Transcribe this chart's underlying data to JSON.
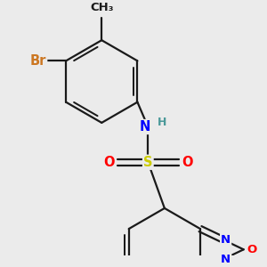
{
  "bg_color": "#ebebeb",
  "bond_color": "#1a1a1a",
  "bond_width": 1.6,
  "atom_colors": {
    "Br": "#cc7722",
    "N": "#0000ff",
    "O": "#ff0000",
    "S": "#cccc00",
    "H": "#4a9999",
    "C": "#1a1a1a"
  },
  "font_size": 10.5
}
